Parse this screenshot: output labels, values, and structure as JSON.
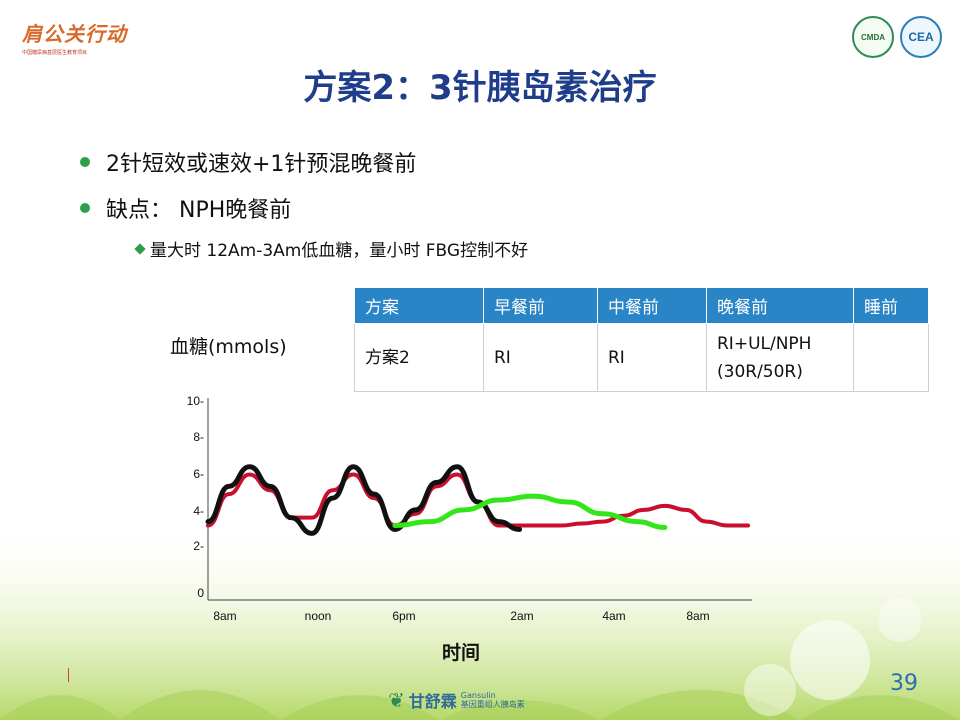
{
  "header": {
    "brand_name": "肩公关行动",
    "brand_sub": "中国糖尿病基层医生教育项目",
    "badge_left": "CMDA",
    "badge_right": "CEA"
  },
  "title": "方案2：3针胰岛素治疗",
  "bullets": [
    "2针短效或速效+1针预混晚餐前",
    "缺点：  NPH晚餐前"
  ],
  "sub_bullet": "量大时  12Am-3Am低血糖，量小时  FBG控制不好",
  "table": {
    "headers": [
      "方案",
      "早餐前",
      "中餐前",
      "晚餐前",
      "睡前"
    ],
    "row": [
      "方案2",
      "RI",
      "RI",
      "RI+UL/NPH (30R/50R)",
      ""
    ]
  },
  "chart_data": {
    "type": "line",
    "title": "",
    "xlabel": "时间",
    "ylabel": "血糖(mmols)",
    "x_tick_labels": [
      "8am",
      "noon",
      "6pm",
      "2am",
      "4am",
      "8am"
    ],
    "y_ticks": [
      0,
      2,
      4,
      6,
      8,
      10
    ],
    "ylim": [
      0,
      10
    ],
    "grid": false,
    "legend": "none",
    "series": [
      {
        "color": "#c8102e",
        "x": [
          0.0,
          0.3,
          0.6,
          0.9,
          1.2,
          1.5,
          1.8,
          2.1,
          2.4,
          2.7,
          3.0,
          3.3,
          3.6,
          3.9,
          4.2,
          4.5,
          4.8,
          5.1,
          5.4,
          5.7,
          6.0,
          6.3,
          6.6,
          6.9,
          7.2,
          7.5,
          7.8
        ],
        "y": [
          3.8,
          5.4,
          6.4,
          5.6,
          4.2,
          4.2,
          5.6,
          6.4,
          5.2,
          3.8,
          4.4,
          5.8,
          6.4,
          5.0,
          3.8,
          3.8,
          3.8,
          3.8,
          3.9,
          4.0,
          4.3,
          4.6,
          4.8,
          4.6,
          4.0,
          3.8,
          3.8
        ]
      },
      {
        "color": "#111111",
        "x": [
          0.0,
          0.3,
          0.6,
          0.9,
          1.2,
          1.5,
          1.8,
          2.1,
          2.4,
          2.7,
          3.0,
          3.3,
          3.6,
          3.9,
          4.2,
          4.5
        ],
        "y": [
          4.0,
          5.8,
          6.8,
          5.8,
          4.2,
          3.4,
          5.2,
          6.8,
          5.4,
          3.6,
          4.6,
          6.0,
          6.8,
          5.0,
          4.0,
          3.6
        ]
      },
      {
        "color": "#33e61a",
        "x": [
          2.7,
          3.2,
          3.7,
          4.2,
          4.7,
          5.2,
          5.7,
          6.2,
          6.6
        ],
        "y": [
          3.8,
          4.0,
          4.6,
          5.1,
          5.3,
          5.0,
          4.4,
          4.0,
          3.7
        ]
      }
    ]
  },
  "footer": {
    "page_number": "39",
    "logo_name": "甘舒霖",
    "logo_en": "Gansulin",
    "logo_sub": "基因重组人胰岛素"
  }
}
